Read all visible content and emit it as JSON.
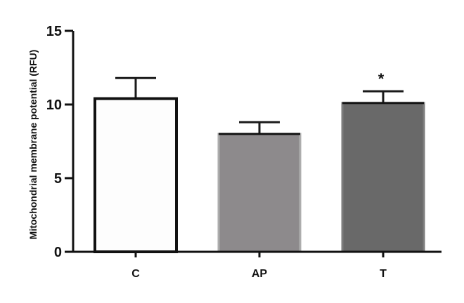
{
  "chart_data": {
    "type": "bar",
    "ylabel": "Mitochondrial membrane potential (RFU)",
    "xlabel": "",
    "categories": [
      "C",
      "AP",
      "T"
    ],
    "values": [
      10.4,
      8.0,
      10.1
    ],
    "errors": [
      1.4,
      0.8,
      0.8
    ],
    "annotations": [
      "",
      "",
      "*"
    ],
    "bar_fill_colors": [
      "#fdfdfd",
      "#8d8a8c",
      "#696969"
    ],
    "bar_edge_colors": [
      "#111111",
      "#adadad",
      "#7d7d7d"
    ],
    "ylim": [
      0,
      15
    ],
    "yticks": [
      0,
      5,
      10,
      15
    ],
    "ytick_labels": [
      "0",
      "5",
      "10",
      "15"
    ],
    "grid": false
  }
}
